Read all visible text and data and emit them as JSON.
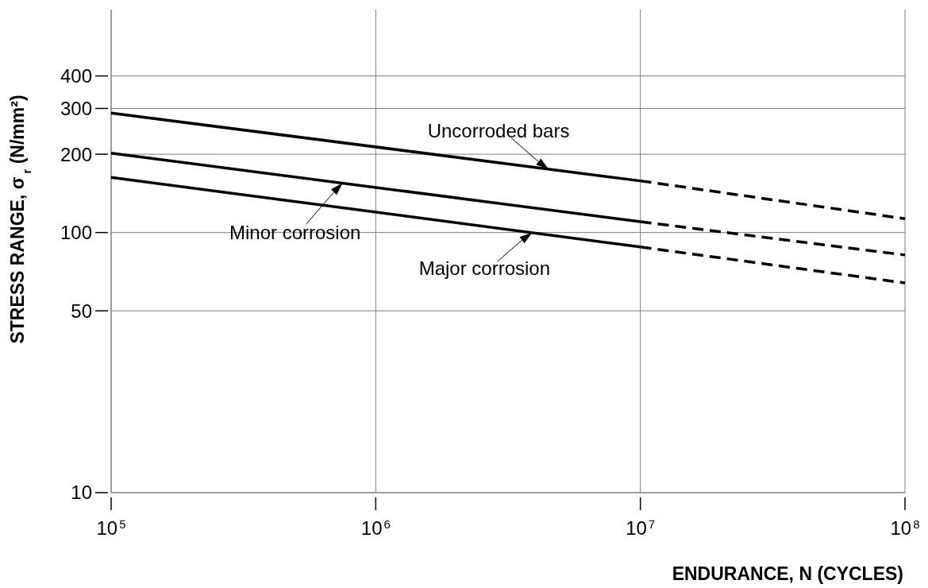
{
  "chart_data": {
    "type": "line",
    "xlabel": "ENDURANCE, N (CYCLES)",
    "ylabel": "STRESS RANGE, σ$_{r}$    (N/mm²)",
    "log": "xy",
    "grid": true,
    "xlim": [
      100000,
      100000000
    ],
    "xticks": [
      {
        "value": 100000,
        "label": "10$^{5}$"
      },
      {
        "value": 1000000,
        "label": "10$^{6}$"
      },
      {
        "value": 10000000,
        "label": "10$^{7}$"
      },
      {
        "value": 100000000,
        "label": "10$^{8}$"
      }
    ],
    "ylim": [
      10,
      720
    ],
    "yticks": [
      10,
      50,
      100,
      200,
      300,
      400
    ],
    "series": [
      {
        "color": "#000000",
        "line_style": "solid",
        "x": [
          100000,
          10000000
        ],
        "values": [
          288,
          158
        ]
      },
      {
        "color": "#000000",
        "line_style": "dashed",
        "x": [
          10000000,
          100000000
        ],
        "values": [
          158,
          113
        ]
      },
      {
        "color": "#000000",
        "line_style": "solid",
        "x": [
          100000,
          10000000
        ],
        "values": [
          202,
          110
        ]
      },
      {
        "color": "#000000",
        "line_style": "dashed",
        "x": [
          10000000,
          100000000
        ],
        "values": [
          110,
          82
        ]
      },
      {
        "color": "#000000",
        "line_style": "solid",
        "x": [
          100000,
          10000000
        ],
        "values": [
          163,
          88
        ]
      },
      {
        "color": "#000000",
        "line_style": "dashed",
        "x": [
          10000000,
          100000000
        ],
        "values": [
          88,
          64
        ]
      }
    ],
    "annotations": [
      {
        "text": "Uncorroded bars",
        "x": 4500000,
        "y": 175
      },
      {
        "text": "Minor corrosion",
        "x": 750000,
        "y": 155
      },
      {
        "text": "Major corrosion",
        "x": 3900000,
        "y": 100
      }
    ]
  }
}
